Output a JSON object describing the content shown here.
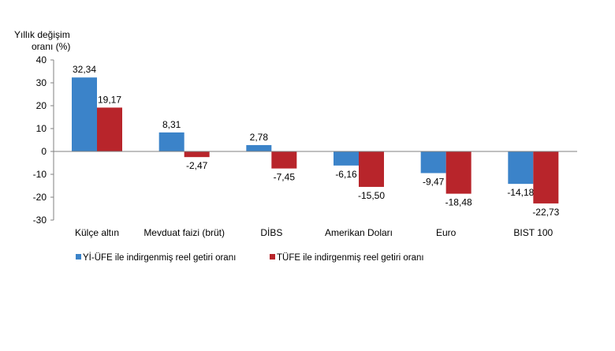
{
  "chart_data": {
    "type": "bar",
    "ylabel": "Yıllık değişim oranı (%)",
    "ylim": [
      -30,
      40
    ],
    "ytick_step": 10,
    "grid": false,
    "legend_position": "bottom",
    "categories": [
      "Külçe altın",
      "Mevduat faizi (brüt)",
      "DİBS",
      "Amerikan Doları",
      "Euro",
      "BIST 100"
    ],
    "series": [
      {
        "name": "Yİ-ÜFE ile indirgenmiş reel getiri oranı",
        "color": "#3b83c9",
        "values": [
          32.34,
          8.31,
          2.78,
          -6.16,
          -9.47,
          -14.18
        ],
        "labels": [
          "32,34",
          "8,31",
          "2,78",
          "-6,16",
          "-9,47",
          "-14,18"
        ]
      },
      {
        "name": "TÜFE ile indirgenmiş reel getiri oranı",
        "color": "#b8252b",
        "values": [
          19.17,
          -2.47,
          -7.45,
          -15.5,
          -18.48,
          -22.73
        ],
        "labels": [
          "19,17",
          "-2,47",
          "-7,45",
          "-15,50",
          "-18,48",
          "-22,73"
        ]
      }
    ]
  }
}
